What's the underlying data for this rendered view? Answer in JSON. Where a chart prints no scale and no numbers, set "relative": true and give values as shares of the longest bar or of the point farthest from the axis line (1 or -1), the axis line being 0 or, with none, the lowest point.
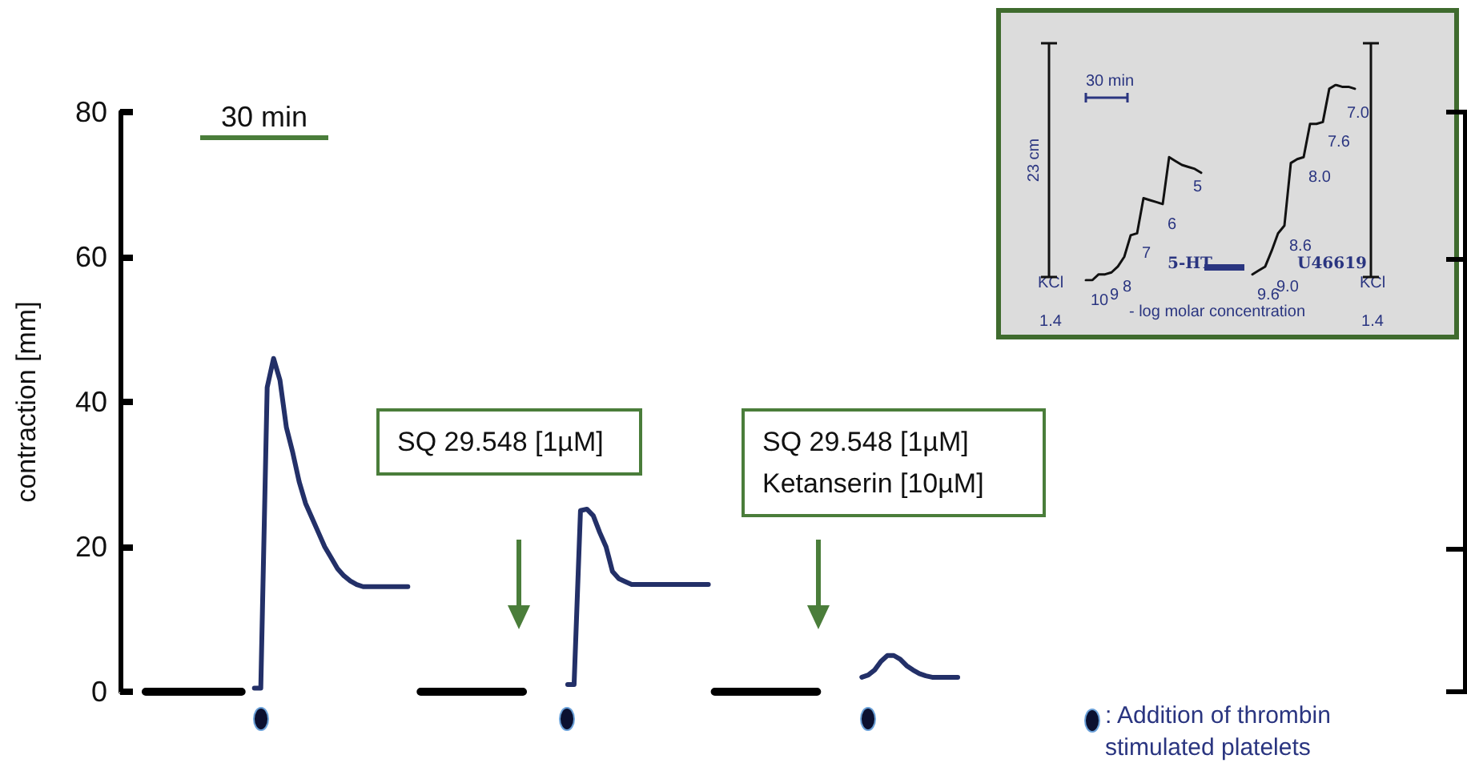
{
  "chart_data": [
    {
      "type": "line",
      "ylabel": "contraction [mm]",
      "ylim": [
        0,
        80
      ],
      "yticks": [
        0,
        20,
        40,
        60,
        80
      ],
      "tick_labels": "y",
      "grid": false,
      "marker": "none",
      "line_style": "solid",
      "categories": [
        null,
        null,
        null,
        null,
        null,
        null,
        null,
        null,
        null,
        null,
        null,
        null,
        null,
        null,
        null,
        null,
        null,
        null,
        null,
        null,
        null,
        null,
        null,
        null,
        null,
        null,
        null,
        null,
        null,
        null,
        null,
        null,
        null,
        null,
        null,
        null,
        null,
        null,
        null,
        null,
        null,
        null,
        null,
        null,
        null,
        null,
        null,
        null,
        null,
        null,
        null,
        null,
        null,
        null,
        null,
        null,
        null,
        null,
        null,
        null,
        null,
        null,
        null,
        null,
        null,
        null,
        null,
        null,
        null,
        null,
        null,
        null,
        null,
        null,
        null,
        null,
        null,
        null,
        null,
        null,
        null,
        null,
        null,
        null,
        null,
        null,
        null,
        null,
        null,
        null,
        null,
        null,
        null,
        null,
        null,
        null,
        null,
        null,
        null,
        null,
        null,
        null,
        null,
        null,
        null,
        null,
        null,
        null,
        null,
        null,
        null,
        null,
        null,
        null,
        null,
        null,
        null,
        null,
        null,
        null,
        null,
        null,
        null,
        null,
        null,
        null,
        null,
        null,
        null,
        null,
        null,
        null,
        null,
        null
      ],
      "series": [
        {
          "color": "#000000",
          "values": [
            null,
            null,
            null,
            null,
            0,
            0,
            0,
            0,
            0,
            0,
            0,
            0,
            0,
            0,
            0,
            0,
            0,
            0,
            0,
            0,
            null,
            null,
            null,
            null,
            null,
            null,
            null,
            null,
            null,
            null,
            null,
            null,
            null,
            null,
            null,
            null,
            null,
            null,
            null,
            null,
            null,
            null,
            null,
            null,
            null,
            null,
            null,
            0,
            0,
            0,
            0,
            0,
            0,
            0,
            0,
            0,
            0,
            0,
            0,
            0,
            0,
            0,
            0,
            0,
            null,
            null,
            null,
            null,
            null,
            null,
            null,
            null,
            null,
            null,
            null,
            null,
            null,
            null,
            null,
            null,
            null,
            null,
            null,
            null,
            null,
            null,
            null,
            null,
            null,
            null,
            null,
            null,
            null,
            0,
            0,
            0,
            0,
            0,
            0,
            0,
            0,
            0,
            0,
            0,
            0,
            0,
            0,
            0,
            0,
            0,
            null,
            null,
            null,
            null,
            null,
            null,
            null,
            null,
            null,
            null,
            null,
            null,
            null,
            null,
            null,
            null,
            null,
            null,
            null,
            null,
            null,
            null,
            null,
            null
          ]
        },
        {
          "color": "#233068",
          "values": [
            null,
            null,
            null,
            null,
            null,
            null,
            null,
            null,
            null,
            null,
            null,
            null,
            null,
            null,
            null,
            null,
            null,
            null,
            null,
            null,
            null,
            0.5,
            0.5,
            42,
            46,
            43,
            36.5,
            33,
            29,
            26,
            24,
            22,
            20,
            18.5,
            17,
            16,
            15.3,
            14.8,
            14.5,
            14.5,
            14.5,
            14.5,
            14.5,
            14.5,
            14.5,
            14.5,
            null,
            null,
            null,
            null,
            null,
            null,
            null,
            null,
            null,
            null,
            null,
            null,
            null,
            null,
            null,
            null,
            null,
            null,
            null,
            null,
            null,
            null,
            null,
            null,
            1,
            1,
            25,
            25.2,
            24.3,
            22,
            20,
            16.6,
            15.6,
            15.2,
            14.8,
            14.8,
            14.8,
            14.8,
            14.8,
            14.8,
            14.8,
            14.8,
            14.8,
            14.8,
            14.8,
            14.8,
            14.8,
            null,
            null,
            null,
            null,
            null,
            null,
            null,
            null,
            null,
            null,
            null,
            null,
            null,
            null,
            null,
            null,
            null,
            null,
            null,
            null,
            null,
            null,
            null,
            2,
            2.3,
            3,
            4.2,
            5,
            5,
            4.5,
            3.6,
            3,
            2.5,
            2.2,
            2,
            2,
            2,
            2,
            2,
            null,
            null
          ]
        }
      ],
      "annotations": [
        "30 min",
        "SQ 29.548 [1µM]",
        "SQ 29.548 [1µM]\nKetanserin [10µM]",
        ": Addition of thrombin stimulated platelets"
      ]
    },
    {
      "type": "line",
      "relative": true,
      "xlabel": "- log molar concentration",
      "marker": "none",
      "line_style": "solid",
      "categories": [
        null,
        null,
        null,
        null,
        null,
        null,
        null,
        null,
        null,
        null,
        null,
        null,
        null,
        null,
        null,
        null,
        null,
        null,
        null,
        null,
        null,
        null,
        null,
        null,
        null,
        null,
        null,
        null,
        null,
        null,
        null,
        null,
        null,
        null,
        null,
        null,
        null,
        null,
        null,
        null,
        null,
        null,
        null
      ],
      "series": [
        {
          "name": "5-HT",
          "color": "#111111",
          "values": [
            0,
            0,
            0.03,
            0.03,
            0.04,
            0.07,
            0.12,
            0.23,
            0.24,
            0.42,
            0.41,
            0.4,
            0.39,
            0.63,
            0.61,
            0.59,
            0.58,
            0.57,
            0.55,
            null,
            null,
            null,
            null,
            null,
            null,
            null,
            null,
            null,
            null,
            null,
            null,
            null,
            null,
            null,
            null,
            null,
            null,
            null,
            null,
            null,
            null,
            null,
            null
          ]
        },
        {
          "name": "U46619",
          "color": "#111111",
          "values": [
            null,
            null,
            null,
            null,
            null,
            null,
            null,
            null,
            null,
            null,
            null,
            null,
            null,
            null,
            null,
            null,
            null,
            null,
            null,
            null,
            null,
            null,
            null,
            null,
            null,
            null,
            0.03,
            0.05,
            0.07,
            0.15,
            0.24,
            0.28,
            0.6,
            0.62,
            0.63,
            0.8,
            0.8,
            0.81,
            0.98,
            1,
            0.99,
            0.99,
            0.98
          ]
        }
      ],
      "annotations": [
        "30 min",
        "23 cm",
        "KCl 1.4",
        "KCl 1.4",
        "10",
        "9",
        "8",
        "7",
        "6",
        "5",
        "9.6",
        "9.0",
        "8.6",
        "8.0",
        "7.6",
        "7.0"
      ]
    }
  ]
}
